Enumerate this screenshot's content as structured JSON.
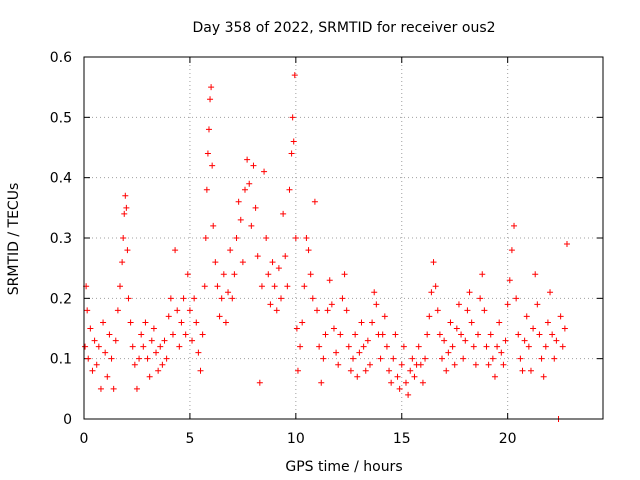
{
  "chart_data": {
    "type": "scatter",
    "title": "Day 358 of 2022, SRMTID for receiver ous2",
    "xlabel": "GPS time / hours",
    "ylabel": "SRMTID / TECUs",
    "xlim": [
      0,
      24.5
    ],
    "ylim": [
      0,
      0.6
    ],
    "xticks": [
      0,
      5,
      10,
      15,
      20
    ],
    "xtick_labels": [
      "0",
      "5",
      "10",
      "15",
      "20"
    ],
    "yticks": [
      0,
      0.1,
      0.2,
      0.3,
      0.4,
      0.5,
      0.6
    ],
    "ytick_labels": [
      "0",
      "0.1",
      "0.2",
      "0.3",
      "0.4",
      "0.5",
      "0.6"
    ],
    "grid": true,
    "marker": "+",
    "color": "#ff0000",
    "series": [
      {
        "name": "SRMTID",
        "points": [
          [
            0.05,
            0.12
          ],
          [
            0.1,
            0.22
          ],
          [
            0.15,
            0.18
          ],
          [
            0.2,
            0.1
          ],
          [
            0.3,
            0.15
          ],
          [
            0.4,
            0.08
          ],
          [
            0.5,
            0.13
          ],
          [
            0.6,
            0.09
          ],
          [
            0.7,
            0.12
          ],
          [
            0.8,
            0.05
          ],
          [
            0.9,
            0.16
          ],
          [
            1.0,
            0.11
          ],
          [
            1.1,
            0.07
          ],
          [
            1.2,
            0.14
          ],
          [
            1.3,
            0.1
          ],
          [
            1.4,
            0.05
          ],
          [
            1.5,
            0.13
          ],
          [
            1.6,
            0.18
          ],
          [
            1.7,
            0.22
          ],
          [
            1.8,
            0.26
          ],
          [
            1.85,
            0.3
          ],
          [
            1.9,
            0.34
          ],
          [
            1.95,
            0.37
          ],
          [
            2.0,
            0.35
          ],
          [
            2.05,
            0.28
          ],
          [
            2.1,
            0.2
          ],
          [
            2.2,
            0.16
          ],
          [
            2.3,
            0.12
          ],
          [
            2.4,
            0.09
          ],
          [
            2.5,
            0.05
          ],
          [
            2.6,
            0.1
          ],
          [
            2.7,
            0.14
          ],
          [
            2.8,
            0.12
          ],
          [
            2.9,
            0.16
          ],
          [
            3.0,
            0.1
          ],
          [
            3.1,
            0.07
          ],
          [
            3.2,
            0.13
          ],
          [
            3.3,
            0.15
          ],
          [
            3.4,
            0.11
          ],
          [
            3.5,
            0.08
          ],
          [
            3.6,
            0.12
          ],
          [
            3.7,
            0.09
          ],
          [
            3.8,
            0.13
          ],
          [
            3.9,
            0.1
          ],
          [
            4.0,
            0.17
          ],
          [
            4.1,
            0.2
          ],
          [
            4.2,
            0.14
          ],
          [
            4.3,
            0.28
          ],
          [
            4.4,
            0.18
          ],
          [
            4.5,
            0.12
          ],
          [
            4.6,
            0.16
          ],
          [
            4.7,
            0.2
          ],
          [
            4.8,
            0.14
          ],
          [
            4.9,
            0.24
          ],
          [
            5.0,
            0.18
          ],
          [
            5.1,
            0.13
          ],
          [
            5.2,
            0.2
          ],
          [
            5.3,
            0.16
          ],
          [
            5.4,
            0.11
          ],
          [
            5.5,
            0.08
          ],
          [
            5.6,
            0.14
          ],
          [
            5.7,
            0.22
          ],
          [
            5.75,
            0.3
          ],
          [
            5.8,
            0.38
          ],
          [
            5.85,
            0.44
          ],
          [
            5.9,
            0.48
          ],
          [
            5.95,
            0.53
          ],
          [
            6.0,
            0.55
          ],
          [
            6.05,
            0.42
          ],
          [
            6.1,
            0.32
          ],
          [
            6.2,
            0.26
          ],
          [
            6.3,
            0.22
          ],
          [
            6.4,
            0.17
          ],
          [
            6.5,
            0.2
          ],
          [
            6.6,
            0.24
          ],
          [
            6.7,
            0.16
          ],
          [
            6.8,
            0.21
          ],
          [
            6.9,
            0.28
          ],
          [
            7.0,
            0.2
          ],
          [
            7.1,
            0.24
          ],
          [
            7.2,
            0.3
          ],
          [
            7.3,
            0.36
          ],
          [
            7.4,
            0.33
          ],
          [
            7.5,
            0.26
          ],
          [
            7.6,
            0.38
          ],
          [
            7.7,
            0.43
          ],
          [
            7.8,
            0.39
          ],
          [
            7.9,
            0.32
          ],
          [
            8.0,
            0.42
          ],
          [
            8.1,
            0.35
          ],
          [
            8.2,
            0.27
          ],
          [
            8.3,
            0.06
          ],
          [
            8.4,
            0.22
          ],
          [
            8.5,
            0.41
          ],
          [
            8.6,
            0.3
          ],
          [
            8.7,
            0.24
          ],
          [
            8.8,
            0.19
          ],
          [
            8.9,
            0.26
          ],
          [
            9.0,
            0.22
          ],
          [
            9.1,
            0.18
          ],
          [
            9.2,
            0.25
          ],
          [
            9.3,
            0.2
          ],
          [
            9.4,
            0.34
          ],
          [
            9.5,
            0.27
          ],
          [
            9.6,
            0.22
          ],
          [
            9.7,
            0.38
          ],
          [
            9.8,
            0.44
          ],
          [
            9.85,
            0.5
          ],
          [
            9.9,
            0.46
          ],
          [
            9.95,
            0.57
          ],
          [
            10.0,
            0.3
          ],
          [
            10.05,
            0.15
          ],
          [
            10.1,
            0.08
          ],
          [
            10.2,
            0.12
          ],
          [
            10.3,
            0.16
          ],
          [
            10.4,
            0.22
          ],
          [
            10.5,
            0.3
          ],
          [
            10.6,
            0.28
          ],
          [
            10.7,
            0.24
          ],
          [
            10.8,
            0.2
          ],
          [
            10.9,
            0.36
          ],
          [
            11.0,
            0.18
          ],
          [
            11.1,
            0.12
          ],
          [
            11.2,
            0.06
          ],
          [
            11.3,
            0.1
          ],
          [
            11.4,
            0.14
          ],
          [
            11.5,
            0.18
          ],
          [
            11.6,
            0.23
          ],
          [
            11.7,
            0.19
          ],
          [
            11.8,
            0.15
          ],
          [
            11.9,
            0.11
          ],
          [
            12.0,
            0.09
          ],
          [
            12.1,
            0.14
          ],
          [
            12.2,
            0.2
          ],
          [
            12.3,
            0.24
          ],
          [
            12.4,
            0.18
          ],
          [
            12.5,
            0.12
          ],
          [
            12.6,
            0.08
          ],
          [
            12.7,
            0.1
          ],
          [
            12.8,
            0.14
          ],
          [
            12.9,
            0.07
          ],
          [
            13.0,
            0.11
          ],
          [
            13.1,
            0.16
          ],
          [
            13.2,
            0.12
          ],
          [
            13.3,
            0.08
          ],
          [
            13.4,
            0.13
          ],
          [
            13.5,
            0.09
          ],
          [
            13.6,
            0.16
          ],
          [
            13.7,
            0.21
          ],
          [
            13.8,
            0.19
          ],
          [
            13.9,
            0.14
          ],
          [
            14.0,
            0.1
          ],
          [
            14.1,
            0.14
          ],
          [
            14.2,
            0.17
          ],
          [
            14.3,
            0.12
          ],
          [
            14.4,
            0.08
          ],
          [
            14.5,
            0.06
          ],
          [
            14.6,
            0.1
          ],
          [
            14.7,
            0.14
          ],
          [
            14.8,
            0.07
          ],
          [
            14.9,
            0.05
          ],
          [
            15.0,
            0.09
          ],
          [
            15.1,
            0.12
          ],
          [
            15.2,
            0.06
          ],
          [
            15.3,
            0.04
          ],
          [
            15.4,
            0.08
          ],
          [
            15.5,
            0.1
          ],
          [
            15.6,
            0.07
          ],
          [
            15.7,
            0.09
          ],
          [
            15.8,
            0.12
          ],
          [
            15.9,
            0.09
          ],
          [
            16.0,
            0.06
          ],
          [
            16.1,
            0.1
          ],
          [
            16.2,
            0.14
          ],
          [
            16.3,
            0.17
          ],
          [
            16.4,
            0.21
          ],
          [
            16.5,
            0.26
          ],
          [
            16.6,
            0.22
          ],
          [
            16.7,
            0.18
          ],
          [
            16.8,
            0.14
          ],
          [
            16.9,
            0.1
          ],
          [
            17.0,
            0.13
          ],
          [
            17.1,
            0.08
          ],
          [
            17.2,
            0.11
          ],
          [
            17.3,
            0.16
          ],
          [
            17.4,
            0.12
          ],
          [
            17.5,
            0.09
          ],
          [
            17.6,
            0.15
          ],
          [
            17.7,
            0.19
          ],
          [
            17.8,
            0.14
          ],
          [
            17.9,
            0.1
          ],
          [
            18.0,
            0.13
          ],
          [
            18.1,
            0.18
          ],
          [
            18.2,
            0.21
          ],
          [
            18.3,
            0.16
          ],
          [
            18.4,
            0.12
          ],
          [
            18.5,
            0.09
          ],
          [
            18.6,
            0.14
          ],
          [
            18.7,
            0.2
          ],
          [
            18.8,
            0.24
          ],
          [
            18.9,
            0.18
          ],
          [
            19.0,
            0.12
          ],
          [
            19.1,
            0.09
          ],
          [
            19.2,
            0.14
          ],
          [
            19.3,
            0.1
          ],
          [
            19.4,
            0.07
          ],
          [
            19.5,
            0.12
          ],
          [
            19.6,
            0.16
          ],
          [
            19.7,
            0.11
          ],
          [
            19.8,
            0.09
          ],
          [
            19.9,
            0.13
          ],
          [
            20.0,
            0.19
          ],
          [
            20.1,
            0.23
          ],
          [
            20.2,
            0.28
          ],
          [
            20.3,
            0.32
          ],
          [
            20.4,
            0.2
          ],
          [
            20.5,
            0.14
          ],
          [
            20.6,
            0.1
          ],
          [
            20.7,
            0.08
          ],
          [
            20.8,
            0.13
          ],
          [
            20.9,
            0.17
          ],
          [
            21.0,
            0.12
          ],
          [
            21.1,
            0.08
          ],
          [
            21.2,
            0.15
          ],
          [
            21.3,
            0.24
          ],
          [
            21.4,
            0.19
          ],
          [
            21.5,
            0.14
          ],
          [
            21.6,
            0.1
          ],
          [
            21.7,
            0.07
          ],
          [
            21.8,
            0.12
          ],
          [
            21.9,
            0.16
          ],
          [
            22.0,
            0.21
          ],
          [
            22.1,
            0.14
          ],
          [
            22.2,
            0.1
          ],
          [
            22.3,
            0.13
          ],
          [
            22.4,
            0.0
          ],
          [
            22.5,
            0.17
          ],
          [
            22.6,
            0.12
          ],
          [
            22.7,
            0.15
          ],
          [
            22.8,
            0.29
          ]
        ]
      }
    ]
  }
}
